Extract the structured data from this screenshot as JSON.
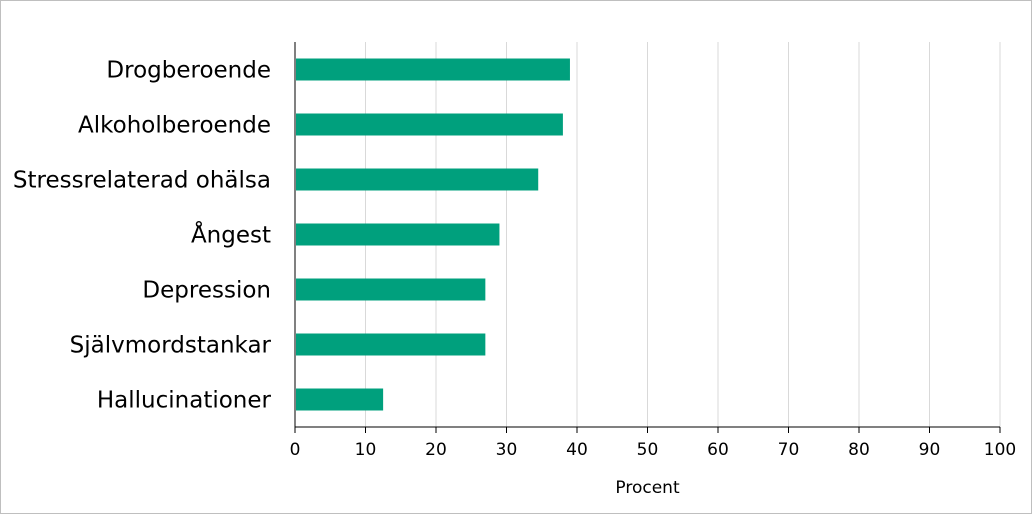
{
  "chart_data": {
    "type": "bar",
    "orientation": "horizontal",
    "categories": [
      "Drogberoende",
      "Alkoholberoende",
      "Stressrelaterad ohälsa",
      "Ångest",
      "Depression",
      "Självmordstankar",
      "Hallucinationer"
    ],
    "values": [
      39,
      38,
      34.5,
      29,
      27,
      27,
      12.5
    ],
    "xlabel": "Procent",
    "ylabel": "",
    "xlim": [
      0,
      100
    ],
    "xticks": [
      0,
      10,
      20,
      30,
      40,
      50,
      60,
      70,
      80,
      90,
      100
    ],
    "grid": "vertical",
    "legend": "none",
    "bar_color": "#00a07d"
  }
}
